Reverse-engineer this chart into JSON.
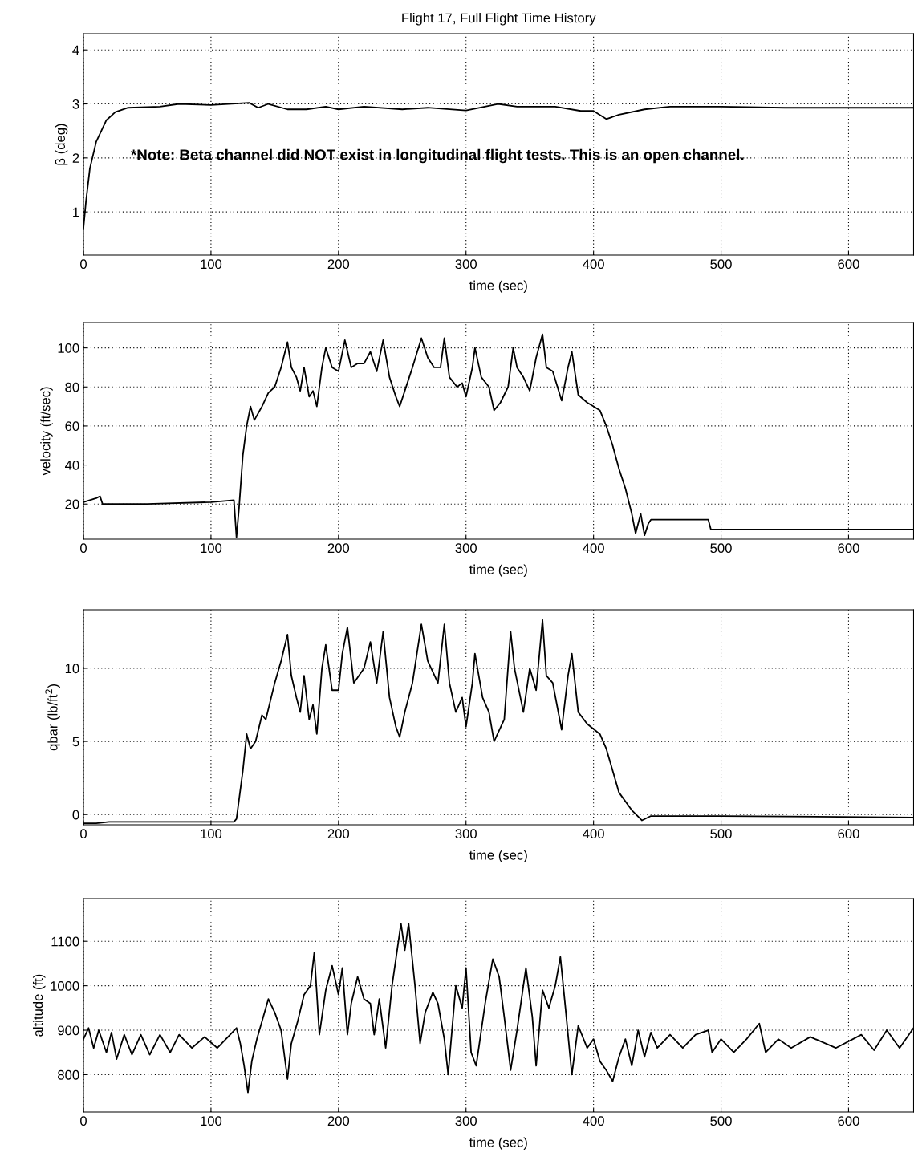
{
  "chart_data": [
    {
      "type": "line",
      "title": "Flight 17, Full Flight Time History",
      "xlabel": "time (sec)",
      "ylabel": "β (deg)",
      "xlim": [
        0,
        651
      ],
      "xticks": [
        0,
        100,
        200,
        300,
        400,
        500,
        600
      ],
      "ylim": [
        0.2,
        4.3
      ],
      "yticks": [
        1,
        2,
        3,
        4
      ],
      "grid": true,
      "line_style": "solid",
      "annotations": [
        "*Note: Beta channel did NOT exist in longitudinal flight tests. This is an open channel."
      ],
      "series": [
        {
          "color": "#000000",
          "x": [
            0,
            2,
            5,
            10,
            18,
            25,
            35,
            60,
            75,
            100,
            130,
            137,
            145,
            160,
            175,
            190,
            200,
            220,
            250,
            270,
            300,
            325,
            340,
            370,
            390,
            400,
            410,
            420,
            440,
            460,
            500,
            550,
            651
          ],
          "values": [
            0.7,
            1.2,
            1.8,
            2.3,
            2.7,
            2.85,
            2.93,
            2.95,
            3.0,
            2.98,
            3.02,
            2.93,
            3.0,
            2.9,
            2.9,
            2.95,
            2.9,
            2.95,
            2.9,
            2.93,
            2.88,
            3.0,
            2.95,
            2.95,
            2.87,
            2.87,
            2.72,
            2.8,
            2.9,
            2.95,
            2.95,
            2.93,
            2.93
          ]
        }
      ]
    },
    {
      "type": "line",
      "xlabel": "time (sec)",
      "ylabel": "velocity (ft/sec)",
      "xlim": [
        0,
        651
      ],
      "xticks": [
        0,
        100,
        200,
        300,
        400,
        500,
        600
      ],
      "ylim": [
        2,
        113
      ],
      "yticks": [
        20,
        40,
        60,
        80,
        100
      ],
      "grid": true,
      "line_style": "solid",
      "series": [
        {
          "color": "#000000",
          "x": [
            0,
            10,
            13,
            15,
            50,
            100,
            118,
            120,
            122,
            125,
            128,
            131,
            134,
            140,
            145,
            150,
            155,
            160,
            163,
            167,
            170,
            173,
            177,
            180,
            183,
            187,
            190,
            195,
            200,
            205,
            210,
            215,
            220,
            225,
            230,
            235,
            240,
            245,
            248,
            252,
            258,
            265,
            270,
            275,
            280,
            283,
            287,
            293,
            297,
            300,
            305,
            307,
            312,
            318,
            322,
            327,
            333,
            337,
            340,
            345,
            350,
            355,
            360,
            363,
            368,
            375,
            380,
            383,
            388,
            395,
            400,
            405,
            410,
            415,
            420,
            425,
            430,
            433,
            437,
            440,
            443,
            445,
            490,
            492,
            651
          ],
          "values": [
            21,
            23,
            24,
            20,
            20,
            21,
            22,
            3,
            18,
            45,
            60,
            70,
            63,
            70,
            77,
            80,
            90,
            103,
            90,
            85,
            78,
            90,
            75,
            78,
            70,
            90,
            100,
            90,
            88,
            104,
            90,
            92,
            92,
            98,
            88,
            104,
            85,
            75,
            70,
            78,
            90,
            105,
            95,
            90,
            90,
            105,
            85,
            80,
            82,
            75,
            90,
            100,
            85,
            80,
            68,
            72,
            80,
            100,
            90,
            85,
            78,
            95,
            107,
            90,
            88,
            73,
            90,
            98,
            76,
            72,
            70,
            68,
            60,
            50,
            38,
            28,
            15,
            5,
            15,
            4,
            10,
            12,
            12,
            7,
            7
          ]
        }
      ]
    },
    {
      "type": "line",
      "xlabel": "time (sec)",
      "ylabel": "qbar (lb/ft$^{2}$)",
      "xlim": [
        0,
        651
      ],
      "xticks": [
        0,
        100,
        200,
        300,
        400,
        500,
        600
      ],
      "ylim": [
        -0.7,
        14
      ],
      "yticks": [
        0,
        5,
        10
      ],
      "grid": true,
      "line_style": "solid",
      "series": [
        {
          "color": "#000000",
          "x": [
            0,
            10,
            20,
            118,
            120,
            125,
            128,
            131,
            135,
            140,
            143,
            150,
            155,
            160,
            163,
            167,
            170,
            173,
            177,
            180,
            183,
            187,
            190,
            195,
            200,
            203,
            207,
            212,
            220,
            225,
            230,
            235,
            240,
            245,
            248,
            252,
            258,
            265,
            270,
            278,
            283,
            287,
            292,
            297,
            300,
            305,
            307,
            313,
            318,
            322,
            330,
            335,
            338,
            345,
            350,
            355,
            360,
            363,
            368,
            375,
            380,
            383,
            388,
            395,
            405,
            410,
            415,
            420,
            430,
            438,
            445,
            500,
            651
          ],
          "values": [
            -0.6,
            -0.6,
            -0.5,
            -0.5,
            -0.3,
            3,
            5.5,
            4.5,
            5,
            6.8,
            6.5,
            9,
            10.5,
            12.3,
            9.5,
            8,
            7,
            9.5,
            6.5,
            7.5,
            5.5,
            10,
            11.6,
            8.5,
            8.5,
            11,
            12.8,
            9,
            10,
            11.8,
            9,
            12.5,
            8,
            6,
            5.3,
            7,
            9,
            13,
            10.5,
            9,
            13,
            9,
            7,
            8,
            6,
            9,
            11,
            8,
            7,
            5,
            6.5,
            12.5,
            10,
            7,
            10,
            8.5,
            13.3,
            9.5,
            9,
            5.8,
            9.5,
            11,
            7,
            6.2,
            5.5,
            4.5,
            3,
            1.5,
            0.3,
            -0.4,
            -0.1,
            -0.1,
            -0.2
          ]
        }
      ]
    },
    {
      "type": "line",
      "xlabel": "time (sec)",
      "ylabel": "altitude (ft)",
      "xlim": [
        0,
        651
      ],
      "xticks": [
        0,
        100,
        200,
        300,
        400,
        500,
        600
      ],
      "ylim": [
        716,
        1196
      ],
      "yticks": [
        800,
        900,
        1000,
        1100
      ],
      "grid": true,
      "line_style": "solid",
      "series": [
        {
          "color": "#000000",
          "x": [
            0,
            4,
            8,
            12,
            18,
            22,
            26,
            32,
            38,
            45,
            52,
            60,
            68,
            75,
            85,
            95,
            105,
            115,
            120,
            123,
            126,
            129,
            132,
            136,
            140,
            145,
            150,
            155,
            160,
            163,
            168,
            173,
            178,
            181,
            185,
            190,
            195,
            200,
            203,
            207,
            210,
            215,
            220,
            225,
            228,
            232,
            237,
            242,
            246,
            249,
            252,
            255,
            260,
            264,
            268,
            274,
            278,
            283,
            286,
            292,
            297,
            300,
            304,
            308,
            315,
            321,
            326,
            330,
            335,
            340,
            347,
            352,
            355,
            360,
            365,
            370,
            374,
            378,
            383,
            388,
            395,
            400,
            405,
            410,
            415,
            420,
            425,
            430,
            435,
            440,
            445,
            450,
            460,
            470,
            480,
            490,
            493,
            500,
            510,
            520,
            530,
            535,
            545,
            555,
            570,
            590,
            610,
            620,
            630,
            640,
            651
          ],
          "values": [
            880,
            905,
            860,
            900,
            850,
            895,
            835,
            890,
            845,
            890,
            845,
            890,
            850,
            890,
            860,
            885,
            860,
            890,
            905,
            870,
            820,
            760,
            830,
            880,
            920,
            970,
            940,
            900,
            790,
            870,
            920,
            980,
            1000,
            1075,
            890,
            990,
            1045,
            980,
            1040,
            890,
            960,
            1020,
            970,
            960,
            890,
            970,
            860,
            1000,
            1080,
            1140,
            1080,
            1140,
            1000,
            870,
            940,
            985,
            960,
            880,
            800,
            1000,
            950,
            1040,
            850,
            820,
            960,
            1060,
            1020,
            930,
            810,
            900,
            1040,
            930,
            820,
            990,
            950,
            1000,
            1065,
            950,
            800,
            910,
            860,
            880,
            830,
            810,
            785,
            840,
            880,
            820,
            900,
            840,
            895,
            860,
            890,
            860,
            890,
            900,
            850,
            880,
            850,
            880,
            915,
            850,
            880,
            860,
            885,
            860,
            890,
            855,
            900,
            860,
            905
          ]
        }
      ]
    }
  ]
}
